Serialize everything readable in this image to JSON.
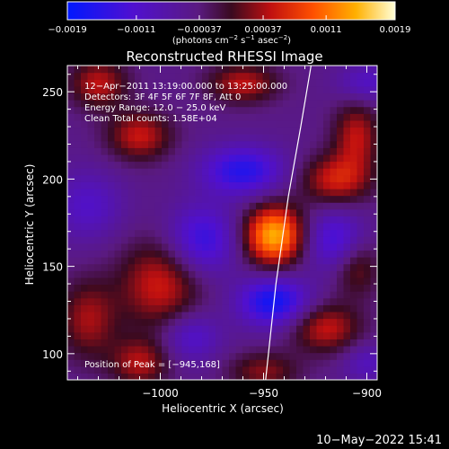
{
  "chart_data": {
    "type": "heatmap",
    "title": "Reconstructed RHESSI Image",
    "xlabel": "Heliocentric X (arcsec)",
    "ylabel": "Heliocentric Y (arcsec)",
    "xlim": [
      -1045,
      -895
    ],
    "ylim": [
      85,
      265
    ],
    "x_ticks": [
      -1000,
      -950,
      -900
    ],
    "x_tick_labels": [
      "−1000",
      "−950",
      "−900"
    ],
    "y_ticks": [
      100,
      150,
      200,
      250
    ],
    "y_tick_labels": [
      "100",
      "150",
      "200",
      "250"
    ],
    "colorbar": {
      "range": [
        -0.0019,
        0.0019
      ],
      "ticks": [
        -0.0019,
        -0.0011,
        -0.00037,
        0.00037,
        0.0011,
        0.0019
      ],
      "tick_labels": [
        "−0.0019",
        "−0.0011",
        "−0.00037",
        "0.00037",
        "0.0011",
        "0.0019"
      ],
      "units_text": "(photons cm",
      "units_sup1": "−2",
      "units_mid": " s",
      "units_sup2": "−1",
      "units_mid2": " asec",
      "units_sup3": "−2",
      "units_end": ")"
    },
    "annotations": [
      "12−Apr−2011 13:19:00.000 to 13:25:00.000",
      "Detectors: 3F 4F 5F 6F 7F 8F, Att 0",
      "Energy Range: 12.0 − 25.0 keV",
      "Clean     Total counts: 1.58E+04"
    ],
    "peak_label": "Position of Peak = [−945,168]",
    "peak": {
      "x": -945,
      "y": 168,
      "value": 0.0019
    },
    "sources": [
      {
        "x": -945,
        "y": 168,
        "sx": 10,
        "sy": 12,
        "amp": 0.0019
      },
      {
        "x": -1030,
        "y": 255,
        "sx": 10,
        "sy": 10,
        "amp": 0.0009
      },
      {
        "x": -1010,
        "y": 225,
        "sx": 11,
        "sy": 10,
        "amp": 0.00095
      },
      {
        "x": -1000,
        "y": 140,
        "sx": 14,
        "sy": 18,
        "amp": 0.001
      },
      {
        "x": -1035,
        "y": 120,
        "sx": 10,
        "sy": 16,
        "amp": 0.0008
      },
      {
        "x": -1010,
        "y": 95,
        "sx": 10,
        "sy": 10,
        "amp": 0.00085
      },
      {
        "x": -960,
        "y": 255,
        "sx": 12,
        "sy": 8,
        "amp": 0.0009
      },
      {
        "x": -915,
        "y": 200,
        "sx": 12,
        "sy": 10,
        "amp": 0.001
      },
      {
        "x": -905,
        "y": 225,
        "sx": 8,
        "sy": 14,
        "amp": 0.0009
      },
      {
        "x": -920,
        "y": 115,
        "sx": 12,
        "sy": 10,
        "amp": 0.00095
      },
      {
        "x": -905,
        "y": 150,
        "sx": 8,
        "sy": 12,
        "amp": 0.0007
      },
      {
        "x": -950,
        "y": 90,
        "sx": 12,
        "sy": 8,
        "amp": 0.0007
      },
      {
        "x": -960,
        "y": 205,
        "sx": 14,
        "sy": 10,
        "amp": -0.0011
      },
      {
        "x": -980,
        "y": 165,
        "sx": 12,
        "sy": 14,
        "amp": -0.001
      },
      {
        "x": -945,
        "y": 130,
        "sx": 12,
        "sy": 10,
        "amp": -0.0013
      },
      {
        "x": -915,
        "y": 165,
        "sx": 10,
        "sy": 12,
        "amp": -0.0009
      },
      {
        "x": -1035,
        "y": 185,
        "sx": 12,
        "sy": 14,
        "amp": -0.0006
      },
      {
        "x": -985,
        "y": 110,
        "sx": 10,
        "sy": 10,
        "amp": -0.0007
      },
      {
        "x": -900,
        "y": 255,
        "sx": 10,
        "sy": 8,
        "amp": -0.0006
      },
      {
        "x": -900,
        "y": 95,
        "sx": 8,
        "sy": 8,
        "amp": -0.0005
      }
    ],
    "limb_arc": [
      [
        -949,
        85
      ],
      [
        -944,
        140
      ],
      [
        -938,
        190
      ],
      [
        -932,
        230
      ],
      [
        -927,
        265
      ]
    ]
  },
  "footer": {
    "datetime": "10−May−2022 15:41"
  }
}
